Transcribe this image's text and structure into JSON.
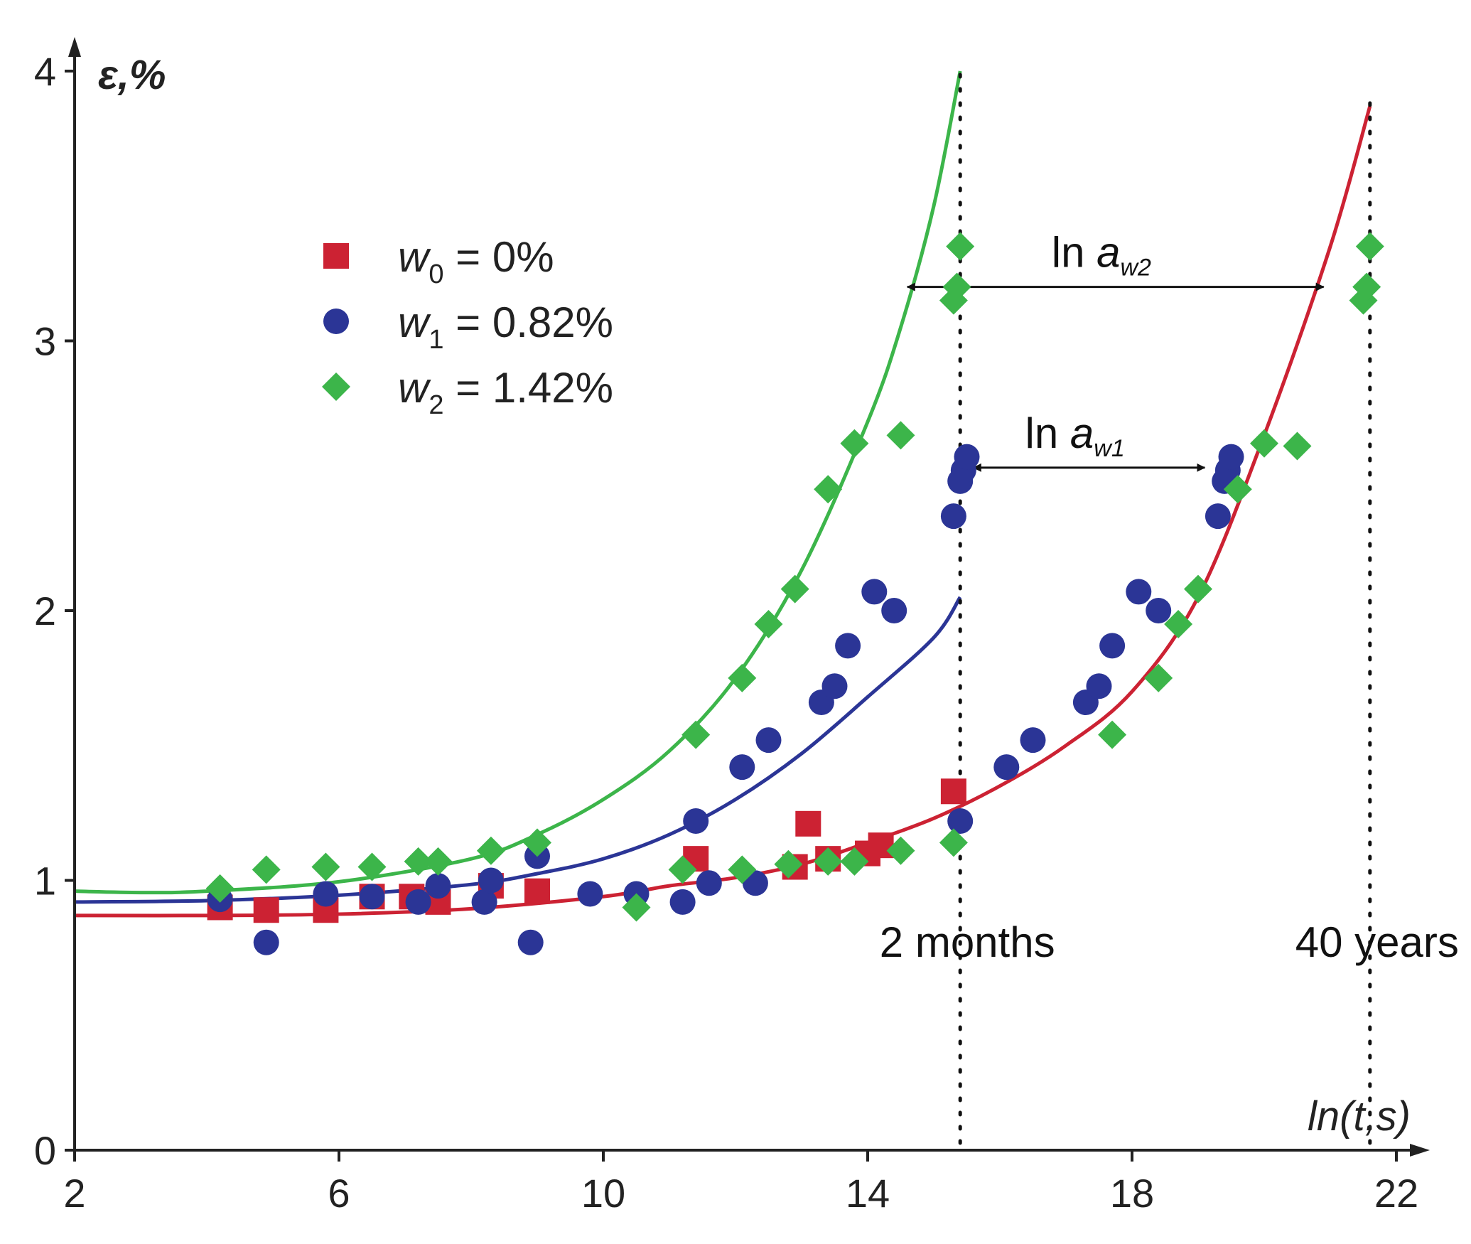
{
  "chart_data": {
    "type": "scatter",
    "title": "",
    "ylabel": "ε,%",
    "xlabel": "ln(t,s)",
    "xlim": [
      2,
      22
    ],
    "ylim": [
      0,
      4
    ],
    "x_ticks": [
      "2",
      "6",
      "10",
      "14",
      "18",
      "22"
    ],
    "y_ticks": [
      "0",
      "1",
      "2",
      "3",
      "4"
    ],
    "colors": {
      "w0": "#cc2233",
      "w1": "#2b3596",
      "w2": "#3cb54a",
      "axis": "#222222"
    },
    "legend": [
      {
        "symbol": "square",
        "var": "w",
        "sub": "0",
        "text": " = 0%"
      },
      {
        "symbol": "circle",
        "var": "w",
        "sub": "1",
        "text": " = 0.82%"
      },
      {
        "symbol": "diamond",
        "var": "w",
        "sub": "2",
        "text": " = 1.42%"
      }
    ],
    "series": [
      {
        "name": "w0 = 0%",
        "marker": "square",
        "color": "#cc2233",
        "points": [
          [
            4.2,
            0.9
          ],
          [
            4.9,
            0.89
          ],
          [
            5.8,
            0.89
          ],
          [
            6.5,
            0.94
          ],
          [
            7.1,
            0.94
          ],
          [
            7.5,
            0.92
          ],
          [
            8.3,
            0.98
          ],
          [
            9,
            0.96
          ],
          [
            11.4,
            1.08
          ],
          [
            12.9,
            1.05
          ],
          [
            13.1,
            1.21
          ],
          [
            13.4,
            1.08
          ],
          [
            14,
            1.1
          ],
          [
            14.2,
            1.13
          ],
          [
            15.3,
            1.33
          ]
        ]
      },
      {
        "name": "w1 = 0.82%",
        "marker": "circle",
        "color": "#2b3596",
        "points": [
          [
            4.2,
            0.93
          ],
          [
            4.9,
            0.77
          ],
          [
            5.8,
            0.95
          ],
          [
            6.5,
            0.94
          ],
          [
            7.2,
            0.92
          ],
          [
            7.5,
            0.98
          ],
          [
            8.2,
            0.92
          ],
          [
            8.3,
            1.0
          ],
          [
            8.9,
            0.77
          ],
          [
            9,
            1.09
          ],
          [
            9.8,
            0.95
          ],
          [
            10.5,
            0.95
          ],
          [
            11.2,
            0.92
          ],
          [
            11.4,
            1.22
          ],
          [
            11.6,
            0.99
          ],
          [
            12.3,
            0.99
          ],
          [
            12.1,
            1.42
          ],
          [
            12.5,
            1.52
          ],
          [
            13.3,
            1.66
          ],
          [
            13.5,
            1.72
          ],
          [
            13.7,
            1.87
          ],
          [
            14.1,
            2.07
          ],
          [
            14.4,
            2.0
          ],
          [
            15.3,
            2.35
          ],
          [
            15.4,
            2.48
          ],
          [
            15.45,
            2.52
          ],
          [
            15.5,
            2.57
          ],
          [
            15.4,
            1.22
          ],
          [
            16.1,
            1.42
          ],
          [
            16.5,
            1.52
          ],
          [
            17.3,
            1.66
          ],
          [
            17.5,
            1.72
          ],
          [
            17.7,
            1.87
          ],
          [
            18.1,
            2.07
          ],
          [
            18.4,
            2.0
          ],
          [
            19.3,
            2.35
          ],
          [
            19.4,
            2.48
          ],
          [
            19.45,
            2.52
          ],
          [
            19.5,
            2.57
          ]
        ]
      },
      {
        "name": "w2 = 1.42%",
        "marker": "diamond",
        "color": "#3cb54a",
        "points": [
          [
            4.2,
            0.97
          ],
          [
            4.9,
            1.04
          ],
          [
            5.8,
            1.05
          ],
          [
            6.5,
            1.05
          ],
          [
            7.2,
            1.07
          ],
          [
            7.5,
            1.07
          ],
          [
            8.3,
            1.11
          ],
          [
            9,
            1.14
          ],
          [
            10.5,
            0.9
          ],
          [
            11.2,
            1.04
          ],
          [
            11.4,
            1.54
          ],
          [
            12.1,
            1.04
          ],
          [
            12.1,
            1.75
          ],
          [
            12.5,
            1.95
          ],
          [
            12.8,
            1.06
          ],
          [
            12.9,
            2.08
          ],
          [
            13.4,
            1.07
          ],
          [
            13.4,
            2.45
          ],
          [
            13.8,
            1.07
          ],
          [
            13.8,
            2.62
          ],
          [
            14.5,
            1.11
          ],
          [
            14.5,
            2.65
          ],
          [
            15.3,
            1.14
          ],
          [
            15.3,
            3.15
          ],
          [
            15.35,
            3.2
          ],
          [
            15.4,
            3.35
          ],
          [
            17.7,
            1.54
          ],
          [
            18.4,
            1.75
          ],
          [
            18.7,
            1.95
          ],
          [
            19,
            2.08
          ],
          [
            19.6,
            2.45
          ],
          [
            20,
            2.62
          ],
          [
            20.5,
            2.61
          ],
          [
            21.5,
            3.15
          ],
          [
            21.55,
            3.2
          ],
          [
            21.6,
            3.35
          ]
        ]
      }
    ],
    "fit_curves": [
      {
        "name": "w0 fit",
        "color": "#cc2233",
        "points": [
          [
            2,
            0.87
          ],
          [
            4,
            0.87
          ],
          [
            6,
            0.875
          ],
          [
            8,
            0.895
          ],
          [
            10,
            0.94
          ],
          [
            11,
            0.98
          ],
          [
            12,
            1.01
          ],
          [
            13,
            1.06
          ],
          [
            14,
            1.14
          ],
          [
            15,
            1.23
          ],
          [
            16,
            1.35
          ],
          [
            17,
            1.5
          ],
          [
            18,
            1.7
          ],
          [
            19,
            2.05
          ],
          [
            20,
            2.65
          ],
          [
            21,
            3.35
          ],
          [
            21.6,
            3.87
          ]
        ]
      },
      {
        "name": "w1 fit",
        "color": "#2b3596",
        "points": [
          [
            2,
            0.92
          ],
          [
            4,
            0.925
          ],
          [
            6,
            0.945
          ],
          [
            8,
            0.985
          ],
          [
            9,
            1.025
          ],
          [
            10,
            1.08
          ],
          [
            11,
            1.17
          ],
          [
            12,
            1.3
          ],
          [
            13,
            1.47
          ],
          [
            14,
            1.68
          ],
          [
            15,
            1.9
          ],
          [
            15.4,
            2.05
          ]
        ]
      },
      {
        "name": "w2 fit",
        "color": "#3cb54a",
        "points": [
          [
            2,
            0.96
          ],
          [
            3,
            0.955
          ],
          [
            4,
            0.96
          ],
          [
            6,
            0.995
          ],
          [
            8,
            1.08
          ],
          [
            9,
            1.17
          ],
          [
            10,
            1.3
          ],
          [
            11,
            1.48
          ],
          [
            12,
            1.75
          ],
          [
            13,
            2.15
          ],
          [
            14,
            2.7
          ],
          [
            14.5,
            3.05
          ],
          [
            15,
            3.5
          ],
          [
            15.4,
            4.0
          ]
        ]
      }
    ],
    "annotations": {
      "vlines": [
        {
          "x": 15.4,
          "y_top": 4.0,
          "label": "2 months"
        },
        {
          "x": 21.6,
          "y_top": 3.9,
          "label": "40 years"
        }
      ],
      "arrows": [
        {
          "from": 14.6,
          "to": 20.9,
          "y": 3.2,
          "label": "ln a",
          "sub": "w2"
        },
        {
          "from": 15.6,
          "to": 19.1,
          "y": 2.53,
          "label": "ln a",
          "sub": "w1"
        }
      ]
    }
  }
}
